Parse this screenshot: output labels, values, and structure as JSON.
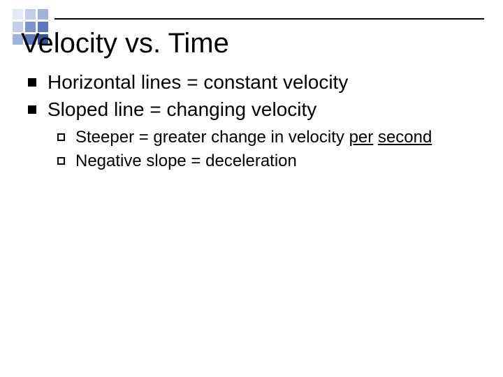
{
  "deco": {
    "colors": [
      "#e3e9f7",
      "#c3cfe9",
      "#9fb3dd",
      "#c3cfe9",
      "#7a94cc",
      "#5a78bd",
      "#9fb3dd",
      "#5a78bd",
      "#34539f"
    ],
    "rule_color": "#000000"
  },
  "title": "Velocity vs. Time",
  "bullets": {
    "level1": [
      {
        "text": "Horizontal lines = constant velocity"
      },
      {
        "text": "Sloped line = changing velocity"
      }
    ],
    "level2": [
      {
        "lead": "Steeper = greater change in velocity ",
        "u1": "per",
        "mid": " ",
        "u2": "second"
      },
      {
        "lead": "Negative slope = deceleration",
        "u1": "",
        "mid": "",
        "u2": ""
      }
    ]
  },
  "typography": {
    "title_fontsize": 40,
    "level1_fontsize": 28,
    "level2_fontsize": 24,
    "font_family": "Arial",
    "text_color": "#000000",
    "background_color": "#ffffff"
  }
}
